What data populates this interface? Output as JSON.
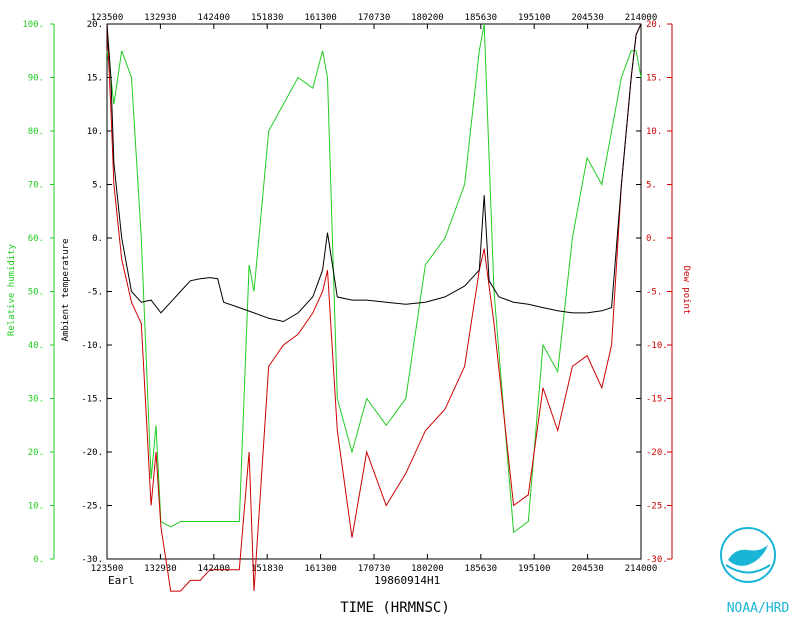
{
  "chart_data": {
    "type": "line",
    "x_axis": {
      "title": "TIME (HRMNSC)",
      "ticks": [
        "123500",
        "132930",
        "142400",
        "151830",
        "161300",
        "170730",
        "180200",
        "185630",
        "195100",
        "204530",
        "214000"
      ],
      "range_seconds": [
        45300,
        78000
      ]
    },
    "left_axis_temperature": {
      "label": "Ambient temperature",
      "range": [
        -30,
        20
      ],
      "ticks": [
        "20.",
        "15.",
        "10.",
        "5.",
        "0.",
        "-5.",
        "-10.",
        "-15.",
        "-20.",
        "-25.",
        "-30."
      ],
      "color": "#000000"
    },
    "left_axis_humidity": {
      "label": "Relative humidity",
      "range": [
        0,
        100
      ],
      "ticks": [
        "100.",
        "90.",
        "80.",
        "70.",
        "60.",
        "50.",
        "40.",
        "30.",
        "20.",
        "10.",
        "0."
      ],
      "color": "#22cc22"
    },
    "right_axis_dewpoint": {
      "label": "Dew point",
      "range": [
        -30,
        20
      ],
      "ticks": [
        "20.",
        "15.",
        "10.",
        "5.",
        "0.",
        "-5.",
        "-10.",
        "-15.",
        "-20.",
        "-25.",
        "-30."
      ],
      "color": "#cc0000"
    },
    "storm_name": "Earl",
    "flight_id": "19860914H1",
    "series": [
      {
        "name": "Ambient temperature",
        "color": "#000000",
        "axis": "temp",
        "x": [
          "12:35:00",
          "12:39:00",
          "12:42:00",
          "12:50:00",
          "13:00:00",
          "13:10:00",
          "13:20:00",
          "13:30:00",
          "13:40:00",
          "13:50:00",
          "14:00:00",
          "14:10:00",
          "14:20:00",
          "14:28:00",
          "14:34:00",
          "14:50:00",
          "15:05:00",
          "15:20:00",
          "15:35:00",
          "15:50:00",
          "16:05:00",
          "16:15:00",
          "16:20:00",
          "16:30:00",
          "16:45:00",
          "17:00:00",
          "17:20:00",
          "17:40:00",
          "18:00:00",
          "18:20:00",
          "18:40:00",
          "18:55:00",
          "19:00:00",
          "19:05:00",
          "19:15:00",
          "19:30:00",
          "19:45:00",
          "20:00:00",
          "20:15:00",
          "20:30:00",
          "20:45:00",
          "21:00:00",
          "21:10:00",
          "21:20:00",
          "21:30:00",
          "21:35:00",
          "21:40:00"
        ],
        "values": [
          20,
          15,
          7,
          0,
          -5,
          -6,
          -5.8,
          -7,
          -6,
          -5,
          -4,
          -3.8,
          -3.7,
          -3.8,
          -6,
          -6.5,
          -7,
          -7.5,
          -7.8,
          -7,
          -5.5,
          -3,
          0.5,
          -5.5,
          -5.8,
          -5.8,
          -6,
          -6.2,
          -6,
          -5.5,
          -4.5,
          -3,
          4,
          -4,
          -5.5,
          -6,
          -6.2,
          -6.5,
          -6.8,
          -7,
          -7,
          -6.8,
          -6.5,
          5,
          15,
          19,
          20
        ]
      },
      {
        "name": "Dew point",
        "color": "#cc0000",
        "axis": "temp",
        "x": [
          "12:35:00",
          "12:39:00",
          "12:42:00",
          "12:50:00",
          "13:00:00",
          "13:10:00",
          "13:20:00",
          "13:25:00",
          "13:30:00",
          "13:40:00",
          "13:50:00",
          "14:00:00",
          "14:10:00",
          "14:20:00",
          "14:30:00",
          "14:40:00",
          "14:50:00",
          "15:00:00",
          "15:05:00",
          "15:20:00",
          "15:35:00",
          "15:50:00",
          "16:05:00",
          "16:15:00",
          "16:20:00",
          "16:30:00",
          "16:45:00",
          "17:00:00",
          "17:20:00",
          "17:40:00",
          "18:00:00",
          "18:20:00",
          "18:40:00",
          "18:55:00",
          "19:00:00",
          "19:10:00",
          "19:30:00",
          "19:45:00",
          "20:00:00",
          "20:15:00",
          "20:30:00",
          "20:45:00",
          "21:00:00",
          "21:10:00",
          "21:20:00",
          "21:30:00",
          "21:35:00",
          "21:40:00"
        ],
        "values": [
          20,
          12,
          5,
          -2,
          -6,
          -8,
          -25,
          -20,
          -27,
          -33,
          -33,
          -32,
          -32,
          -31,
          -31,
          -31,
          -31,
          -20,
          -33,
          -12,
          -10,
          -9,
          -7,
          -5,
          -3,
          -18,
          -28,
          -20,
          -25,
          -22,
          -18,
          -16,
          -12,
          -3,
          -1,
          -8,
          -25,
          -24,
          -14,
          -18,
          -12,
          -11,
          -14,
          -10,
          5,
          15,
          19,
          20
        ]
      },
      {
        "name": "Relative humidity",
        "color": "#22cc22",
        "axis": "rh",
        "x": [
          "12:35:00",
          "12:39:00",
          "12:42:00",
          "12:50:00",
          "13:00:00",
          "13:10:00",
          "13:20:00",
          "13:25:00",
          "13:30:00",
          "13:40:00",
          "13:50:00",
          "14:00:00",
          "14:10:00",
          "14:20:00",
          "14:30:00",
          "14:40:00",
          "14:50:00",
          "15:00:00",
          "15:05:00",
          "15:20:00",
          "15:35:00",
          "15:50:00",
          "16:05:00",
          "16:15:00",
          "16:20:00",
          "16:30:00",
          "16:45:00",
          "17:00:00",
          "17:20:00",
          "17:40:00",
          "18:00:00",
          "18:20:00",
          "18:40:00",
          "18:55:00",
          "19:00:00",
          "19:10:00",
          "19:30:00",
          "19:45:00",
          "20:00:00",
          "20:15:00",
          "20:30:00",
          "20:45:00",
          "21:00:00",
          "21:10:00",
          "21:20:00",
          "21:30:00",
          "21:35:00",
          "21:40:00"
        ],
        "values": [
          95,
          90,
          85,
          95,
          90,
          60,
          15,
          25,
          7,
          6,
          7,
          7,
          7,
          7,
          7,
          7,
          7,
          55,
          50,
          80,
          85,
          90,
          88,
          95,
          90,
          30,
          20,
          30,
          25,
          30,
          55,
          60,
          70,
          95,
          100,
          50,
          5,
          7,
          40,
          35,
          60,
          75,
          70,
          80,
          90,
          95,
          95,
          90
        ]
      }
    ]
  },
  "branding": {
    "logo_text": "NOAA",
    "org_label": "NOAA/HRD"
  }
}
